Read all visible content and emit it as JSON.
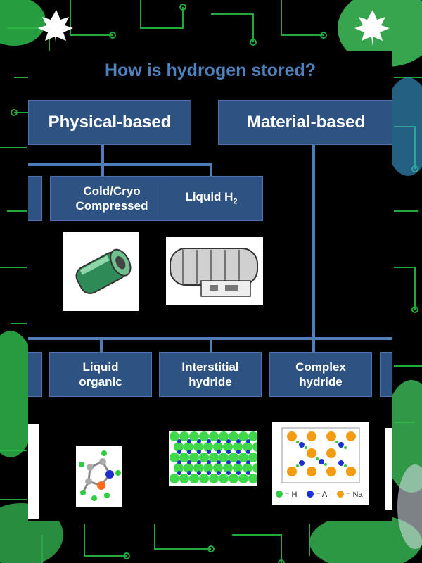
{
  "title": "How is hydrogen stored?",
  "categories": {
    "physical": "Physical-based",
    "material": "Material-based"
  },
  "physical_methods": [
    {
      "label": "Cold/Cryo Compressed"
    },
    {
      "label": "Liquid H",
      "subscript": "2"
    }
  ],
  "material_methods": [
    {
      "label": "Liquid organic"
    },
    {
      "label": "Interstitial hydride"
    },
    {
      "label": "Complex hydride"
    }
  ],
  "legend": [
    {
      "symbol": "H",
      "label": "= H",
      "color": "#2ecc40"
    },
    {
      "symbol": "Al",
      "label": "= Al",
      "color": "#1a2fd0"
    },
    {
      "symbol": "Na",
      "label": "= Na",
      "color": "#f39c12"
    }
  ],
  "colors": {
    "box_fill": "#2e5383",
    "connector": "#4f7fb8",
    "title": "#4f81bd",
    "circuit": "#1faa3a"
  }
}
